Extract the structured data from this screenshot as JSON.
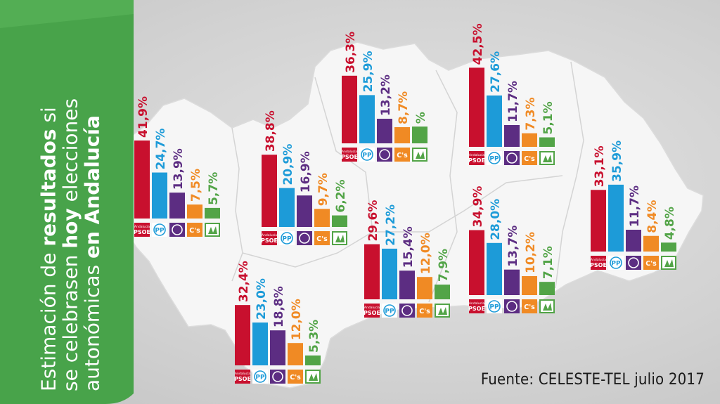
{
  "title": {
    "line1_a": "Estimación de ",
    "line1_b": "resultados",
    "line1_c": " si",
    "line2_a": "se celebrasen ",
    "line2_b": "hoy",
    "line2_c": " elecciones",
    "line3_a": "autonómicas ",
    "line3_b": "en Andalucía"
  },
  "source": "Fuente: CELESTE-TEL julio 2017",
  "colors": {
    "PSOE": "#c8102e",
    "PP": "#1d9bd8",
    "Podemos": "#5c2d82",
    "Cs": "#f08a24",
    "IU": "#52a447",
    "banner": "#48a34a"
  },
  "party_labels": {
    "psoe_small": "Andalucía",
    "psoe": "PSOE",
    "pp": "PP",
    "cs": "C's"
  },
  "chart_data": [
    {
      "type": "bar",
      "categories": [
        "PSOE",
        "PP",
        "Podemos",
        "Cs",
        "IU"
      ],
      "values": [
        41.9,
        24.7,
        13.9,
        7.5,
        5.7
      ],
      "labels": [
        "41,9%",
        "24,7%",
        "13,9%",
        "7,5%",
        "5,7%"
      ]
    },
    {
      "type": "bar",
      "categories": [
        "PSOE",
        "PP",
        "Podemos",
        "Cs",
        "IU"
      ],
      "values": [
        38.8,
        20.9,
        16.9,
        9.7,
        6.2
      ],
      "labels": [
        "38,8%",
        "20,9%",
        "16,9%",
        "9,7%",
        "6,2%"
      ]
    },
    {
      "type": "bar",
      "categories": [
        "PSOE",
        "PP",
        "Podemos",
        "Cs",
        "IU"
      ],
      "values": [
        36.3,
        25.9,
        13.2,
        8.7,
        9
      ],
      "labels": [
        "36,3%",
        "25,9%",
        "13,2%",
        "8,7%",
        "%"
      ]
    },
    {
      "type": "bar",
      "categories": [
        "PSOE",
        "PP",
        "Podemos",
        "Cs",
        "IU"
      ],
      "values": [
        42.5,
        27.6,
        11.7,
        7.3,
        5.1
      ],
      "labels": [
        "42,5%",
        "27,6%",
        "11,7%",
        "7,3%",
        "5,1%"
      ]
    },
    {
      "type": "bar",
      "categories": [
        "PSOE",
        "PP",
        "Podemos",
        "Cs",
        "IU"
      ],
      "values": [
        33.1,
        35.9,
        11.7,
        8.4,
        4.8
      ],
      "labels": [
        "33,1%",
        "35,9%",
        "11,7%",
        "8,4%",
        "4,8%"
      ]
    },
    {
      "type": "bar",
      "categories": [
        "PSOE",
        "PP",
        "Podemos",
        "Cs",
        "IU"
      ],
      "values": [
        29.6,
        27.2,
        15.4,
        12.0,
        7.9
      ],
      "labels": [
        "29,6%",
        "27,2%",
        "15,4%",
        "12,0%",
        "7,9%"
      ]
    },
    {
      "type": "bar",
      "categories": [
        "PSOE",
        "PP",
        "Podemos",
        "Cs",
        "IU"
      ],
      "values": [
        34.9,
        28.0,
        13.7,
        10.2,
        7.1
      ],
      "labels": [
        "34,9%",
        "28,0%",
        "13,7%",
        "10,2%",
        "7,1%"
      ]
    },
    {
      "type": "bar",
      "categories": [
        "PSOE",
        "PP",
        "Podemos",
        "Cs",
        "IU"
      ],
      "values": [
        32.4,
        23.0,
        18.8,
        12.0,
        5.3
      ],
      "labels": [
        "32,4%",
        "23,0%",
        "18,8%",
        "12,0%",
        "5,3%"
      ]
    }
  ]
}
